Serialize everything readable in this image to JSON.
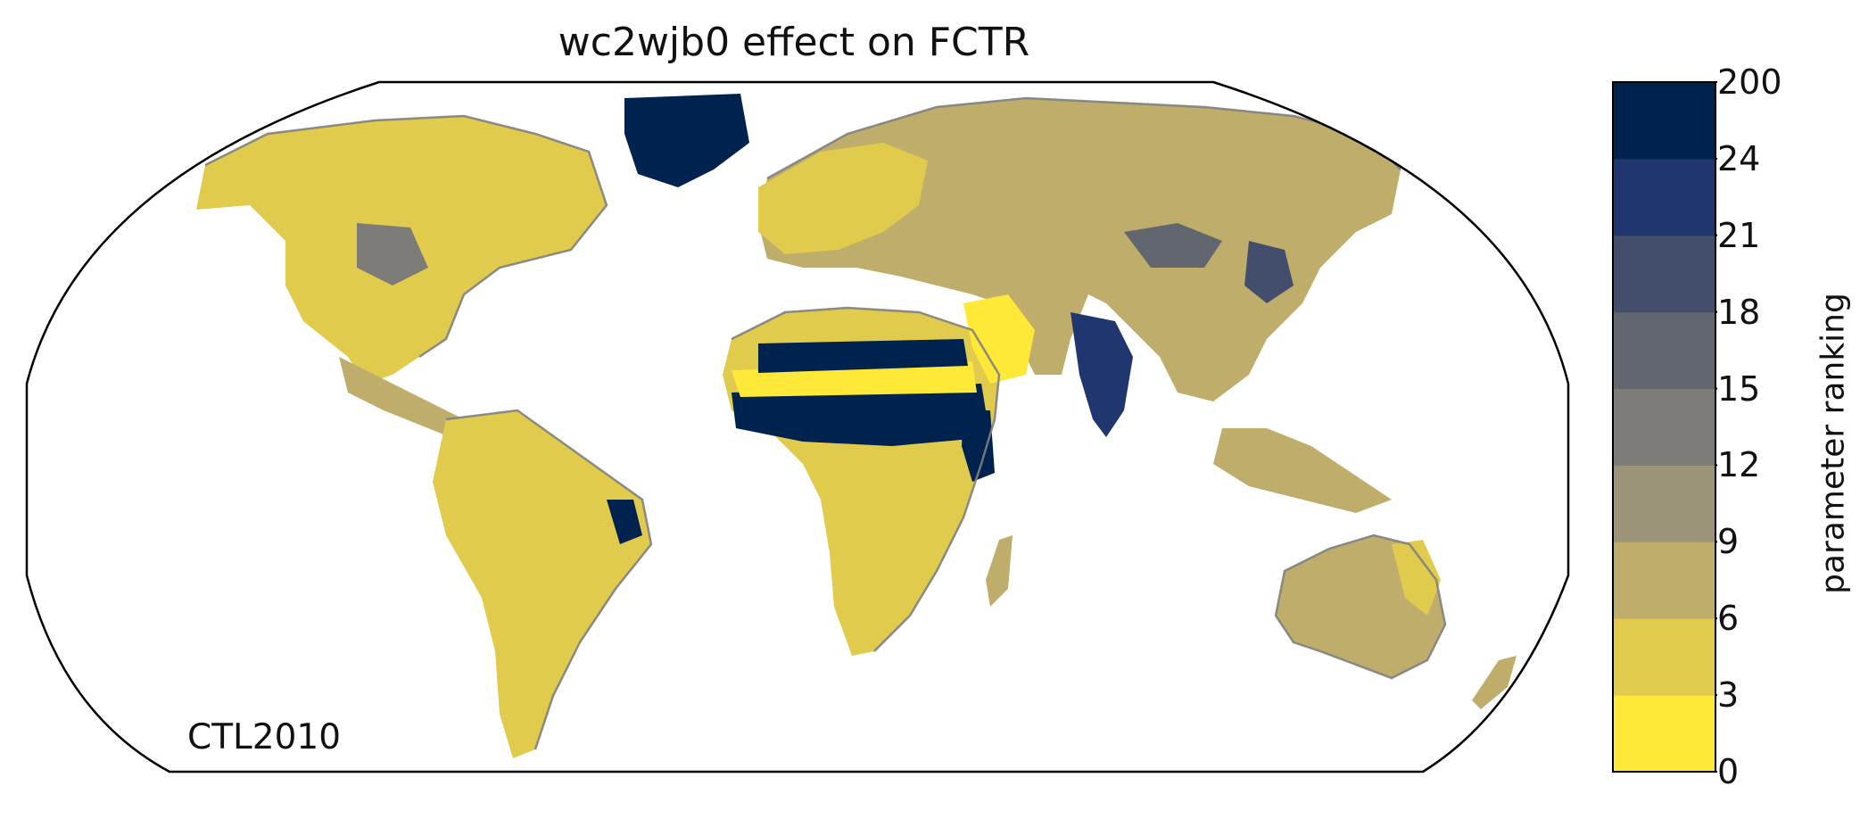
{
  "title": "wc2wjb0 effect on FCTR",
  "run_label": "CTL2010",
  "colorbar": {
    "label": "parameter ranking",
    "tick_labels": [
      "0",
      "3",
      "6",
      "9",
      "12",
      "15",
      "18",
      "21",
      "24",
      "200"
    ],
    "bins": [
      {
        "range": [
          0,
          3
        ],
        "color": "#fee838"
      },
      {
        "range": [
          3,
          6
        ],
        "color": "#e1cb4d"
      },
      {
        "range": [
          6,
          9
        ],
        "color": "#bfae6b"
      },
      {
        "range": [
          9,
          12
        ],
        "color": "#9b9478"
      },
      {
        "range": [
          12,
          15
        ],
        "color": "#7d7c78"
      },
      {
        "range": [
          15,
          18
        ],
        "color": "#62666f"
      },
      {
        "range": [
          18,
          21
        ],
        "color": "#434e6c"
      },
      {
        "range": [
          21,
          24
        ],
        "color": "#1f366f"
      },
      {
        "range": [
          24,
          200
        ],
        "color": "#00224e"
      }
    ]
  },
  "coastline_color": "#808080",
  "projection": "Robinson"
}
